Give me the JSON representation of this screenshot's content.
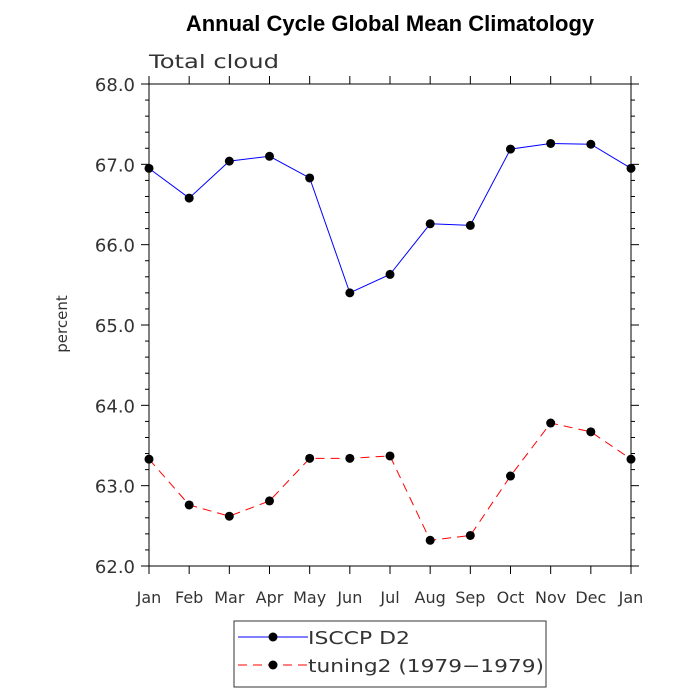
{
  "chart_data": {
    "type": "line",
    "title": "Annual Cycle Global Mean Climatology",
    "subtitle": "Total cloud",
    "ylabel": "percent",
    "xlabel": "",
    "categories": [
      "Jan",
      "Feb",
      "Mar",
      "Apr",
      "May",
      "Jun",
      "Jul",
      "Aug",
      "Sep",
      "Oct",
      "Nov",
      "Dec",
      "Jan"
    ],
    "ylim": [
      62.0,
      68.0
    ],
    "yticks": [
      62.0,
      63.0,
      64.0,
      65.0,
      66.0,
      67.0,
      68.0
    ],
    "ytick_labels": [
      "62.0",
      "63.0",
      "64.0",
      "65.0",
      "66.0",
      "67.0",
      "68.0"
    ],
    "legend_position": "bottom-center",
    "series": [
      {
        "name": "ISCCP D2",
        "color": "#0000ff",
        "style": "solid",
        "values": [
          66.95,
          66.58,
          67.04,
          67.1,
          66.83,
          65.4,
          65.63,
          66.26,
          66.24,
          67.19,
          67.26,
          67.25,
          66.95
        ]
      },
      {
        "name": "tuning2 (1979−1979)",
        "color": "#ff0000",
        "style": "dashed",
        "values": [
          63.33,
          62.76,
          62.62,
          62.81,
          63.34,
          63.34,
          63.37,
          62.32,
          62.38,
          63.12,
          63.78,
          63.67,
          63.33
        ]
      }
    ]
  }
}
